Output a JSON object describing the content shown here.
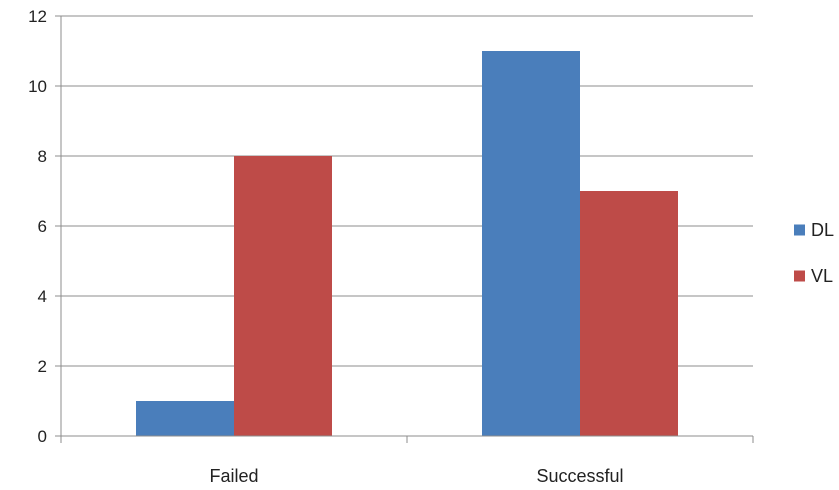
{
  "chart_data": {
    "type": "bar",
    "title": "",
    "xlabel": "",
    "ylabel": "",
    "categories": [
      "Failed",
      "Successful"
    ],
    "series": [
      {
        "name": "DL",
        "values": [
          1,
          11
        ],
        "color": "#4a7ebb"
      },
      {
        "name": "VL",
        "values": [
          8,
          7
        ],
        "color": "#be4b48"
      }
    ],
    "ylim": [
      0,
      12
    ],
    "yticks": [
      0,
      2,
      4,
      6,
      8,
      10,
      12
    ],
    "grid": true,
    "legend_position": "right"
  }
}
